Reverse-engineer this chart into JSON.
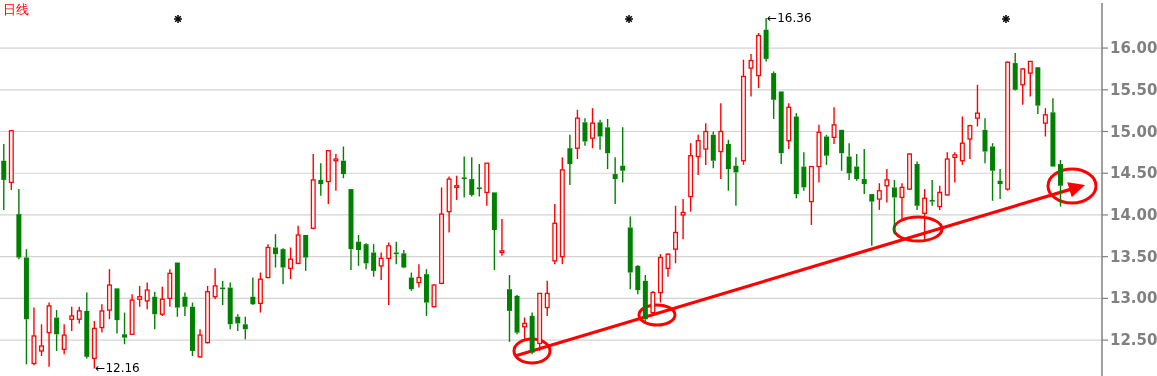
{
  "chart_data": {
    "type": "candlestick",
    "title": "日线",
    "categories": [
      null,
      null,
      null,
      null,
      null,
      null,
      null,
      null,
      null,
      null,
      null,
      null,
      null,
      null,
      null,
      null,
      null,
      null,
      null,
      null,
      null,
      null,
      null,
      null,
      null,
      null,
      null,
      null,
      null,
      null,
      null,
      null,
      null,
      null,
      null,
      null,
      null,
      null,
      null,
      null,
      null,
      null,
      null,
      null,
      null,
      null,
      null,
      null,
      null,
      null,
      null,
      null,
      null,
      null,
      null,
      null,
      null,
      null,
      null,
      null,
      null,
      null,
      null,
      null,
      null,
      null,
      null,
      null,
      null,
      null,
      null,
      null,
      null,
      null,
      null,
      null,
      null,
      null,
      null,
      null,
      null,
      null,
      null,
      null,
      null,
      null,
      null,
      null,
      null,
      null,
      null,
      null,
      null,
      null,
      null,
      null,
      null,
      null,
      null,
      null,
      null,
      null,
      null,
      null,
      null,
      null,
      null,
      null,
      null,
      null,
      null,
      null,
      null,
      null,
      null,
      null,
      null,
      null,
      null,
      null,
      null,
      null,
      null,
      null,
      null,
      null,
      null,
      null,
      null,
      null,
      null,
      null,
      null,
      null,
      null,
      null,
      null,
      null,
      null,
      null,
      null,
      null,
      null,
      null,
      null,
      null
    ],
    "ohlc": [
      [
        14.65,
        14.85,
        14.06,
        14.42
      ],
      [
        14.39,
        15.01,
        14.3,
        15.01
      ],
      [
        14.01,
        14.31,
        13.47,
        13.49
      ],
      [
        13.49,
        13.59,
        12.21,
        12.75
      ],
      [
        12.22,
        12.89,
        12.2,
        12.55
      ],
      [
        12.37,
        12.69,
        12.31,
        12.43
      ],
      [
        12.59,
        12.95,
        12.18,
        12.91
      ],
      [
        12.77,
        12.86,
        12.37,
        12.57
      ],
      [
        12.39,
        12.69,
        12.33,
        12.56
      ],
      [
        12.75,
        12.9,
        12.61,
        12.79
      ],
      [
        12.75,
        12.9,
        12.7,
        12.85
      ],
      [
        12.85,
        13.07,
        12.28,
        12.3
      ],
      [
        12.28,
        12.73,
        12.16,
        12.64
      ],
      [
        12.65,
        12.93,
        12.59,
        12.85
      ],
      [
        12.86,
        13.35,
        12.75,
        13.16
      ],
      [
        13.12,
        13.12,
        12.58,
        12.74
      ],
      [
        12.57,
        12.83,
        12.45,
        12.53
      ],
      [
        12.57,
        13.05,
        12.57,
        12.98
      ],
      [
        12.99,
        13.15,
        12.9,
        13.02
      ],
      [
        12.97,
        13.19,
        12.87,
        13.1
      ],
      [
        13.02,
        13.08,
        12.63,
        12.81
      ],
      [
        12.81,
        13.14,
        12.79,
        12.99
      ],
      [
        13.0,
        13.35,
        12.9,
        13.3
      ],
      [
        13.43,
        13.43,
        12.78,
        12.89
      ],
      [
        13.02,
        13.07,
        12.79,
        12.9
      ],
      [
        12.9,
        12.95,
        12.31,
        12.37
      ],
      [
        12.3,
        12.63,
        12.29,
        12.56
      ],
      [
        12.47,
        13.15,
        12.46,
        13.08
      ],
      [
        13.02,
        13.36,
        12.99,
        13.15
      ],
      [
        13.13,
        13.21,
        12.92,
        13.11
      ],
      [
        13.13,
        13.19,
        12.63,
        12.69
      ],
      [
        12.78,
        12.81,
        12.61,
        12.7
      ],
      [
        12.69,
        12.78,
        12.51,
        12.63
      ],
      [
        13.02,
        13.25,
        12.92,
        12.93
      ],
      [
        12.94,
        13.31,
        12.83,
        13.23
      ],
      [
        13.25,
        13.65,
        13.24,
        13.61
      ],
      [
        13.61,
        13.77,
        13.37,
        13.53
      ],
      [
        13.59,
        13.6,
        13.17,
        13.37
      ],
      [
        13.36,
        13.61,
        13.23,
        13.47
      ],
      [
        13.42,
        13.87,
        13.41,
        13.76
      ],
      [
        13.76,
        13.76,
        13.33,
        13.49
      ],
      [
        13.84,
        14.73,
        13.83,
        14.42
      ],
      [
        14.42,
        14.62,
        14.23,
        14.37
      ],
      [
        14.4,
        14.77,
        14.13,
        14.77
      ],
      [
        14.65,
        14.73,
        14.29,
        14.67
      ],
      [
        14.65,
        14.82,
        14.44,
        14.49
      ],
      [
        14.31,
        14.31,
        13.34,
        13.59
      ],
      [
        13.68,
        13.76,
        13.39,
        13.58
      ],
      [
        13.65,
        13.66,
        13.35,
        13.42
      ],
      [
        13.55,
        13.65,
        13.26,
        13.33
      ],
      [
        13.39,
        13.55,
        13.22,
        13.48
      ],
      [
        13.48,
        13.67,
        12.92,
        13.63
      ],
      [
        13.55,
        13.68,
        13.41,
        13.53
      ],
      [
        13.54,
        13.58,
        13.36,
        13.37
      ],
      [
        13.25,
        13.31,
        13.09,
        13.11
      ],
      [
        13.19,
        13.41,
        13.13,
        13.25
      ],
      [
        13.29,
        13.35,
        12.79,
        12.95
      ],
      [
        12.9,
        13.17,
        12.89,
        13.16
      ],
      [
        13.18,
        14.33,
        13.17,
        14.01
      ],
      [
        14.04,
        14.46,
        13.79,
        14.43
      ],
      [
        14.33,
        14.47,
        14.18,
        14.35
      ],
      [
        14.45,
        14.7,
        14.21,
        14.43
      ],
      [
        14.43,
        14.69,
        14.22,
        14.24
      ],
      [
        14.33,
        14.61,
        14.22,
        14.31
      ],
      [
        14.27,
        14.62,
        14.11,
        14.62
      ],
      [
        14.27,
        14.27,
        13.34,
        13.82
      ],
      [
        13.55,
        13.95,
        13.51,
        13.57
      ],
      [
        13.11,
        13.28,
        12.48,
        12.85
      ],
      [
        13.03,
        13.04,
        12.57,
        12.59
      ],
      [
        12.66,
        12.77,
        12.49,
        12.7
      ],
      [
        12.79,
        12.83,
        12.33,
        12.35
      ],
      [
        12.46,
        13.06,
        12.37,
        13.06
      ],
      [
        12.89,
        13.21,
        12.79,
        13.06
      ],
      [
        13.45,
        14.13,
        13.41,
        13.9
      ],
      [
        13.5,
        14.69,
        13.41,
        14.54
      ],
      [
        14.8,
        14.96,
        14.36,
        14.61
      ],
      [
        14.8,
        15.26,
        14.67,
        15.16
      ],
      [
        15.11,
        15.16,
        14.83,
        14.88
      ],
      [
        14.92,
        15.28,
        14.8,
        15.1
      ],
      [
        15.11,
        15.14,
        14.78,
        14.94
      ],
      [
        15.05,
        15.15,
        14.55,
        14.74
      ],
      [
        14.49,
        14.69,
        14.13,
        14.43
      ],
      [
        14.59,
        15.05,
        14.39,
        14.53
      ],
      [
        13.85,
        13.98,
        13.11,
        13.31
      ],
      [
        13.39,
        13.4,
        13.05,
        13.1
      ],
      [
        13.21,
        13.28,
        12.73,
        12.75
      ],
      [
        12.83,
        13.09,
        12.81,
        13.07
      ],
      [
        13.07,
        13.53,
        12.95,
        13.49
      ],
      [
        13.36,
        13.54,
        13.26,
        13.53
      ],
      [
        13.59,
        14.11,
        13.42,
        13.79
      ],
      [
        14.0,
        14.19,
        13.71,
        14.03
      ],
      [
        14.22,
        14.86,
        14.04,
        14.71
      ],
      [
        14.7,
        14.96,
        14.48,
        14.89
      ],
      [
        14.79,
        15.1,
        14.6,
        15.0
      ],
      [
        14.96,
        15.0,
        14.56,
        14.65
      ],
      [
        14.76,
        15.34,
        14.43,
        15.0
      ],
      [
        14.85,
        14.9,
        14.29,
        14.55
      ],
      [
        14.59,
        14.69,
        14.11,
        14.51
      ],
      [
        14.65,
        15.86,
        14.6,
        15.66
      ],
      [
        15.76,
        15.93,
        15.42,
        15.85
      ],
      [
        15.67,
        16.18,
        15.52,
        16.15
      ],
      [
        16.22,
        16.36,
        15.84,
        15.87
      ],
      [
        15.7,
        15.72,
        15.15,
        15.38
      ],
      [
        15.48,
        15.48,
        14.61,
        14.74
      ],
      [
        14.89,
        15.34,
        14.79,
        15.29
      ],
      [
        15.18,
        15.22,
        14.2,
        14.25
      ],
      [
        14.58,
        14.75,
        14.29,
        14.33
      ],
      [
        14.16,
        14.58,
        13.88,
        14.58
      ],
      [
        14.58,
        15.08,
        14.39,
        14.99
      ],
      [
        14.94,
        14.96,
        14.6,
        14.71
      ],
      [
        14.93,
        15.29,
        14.85,
        15.08
      ],
      [
        15.02,
        15.02,
        14.53,
        14.74
      ],
      [
        14.7,
        14.86,
        14.42,
        14.5
      ],
      [
        14.58,
        14.73,
        14.41,
        14.43
      ],
      [
        14.43,
        14.79,
        14.25,
        14.37
      ],
      [
        14.25,
        14.25,
        13.63,
        14.16
      ],
      [
        14.19,
        14.38,
        14.06,
        14.29
      ],
      [
        14.35,
        14.55,
        14.15,
        14.42
      ],
      [
        14.33,
        14.42,
        13.77,
        14.21
      ],
      [
        14.21,
        14.38,
        13.93,
        14.33
      ],
      [
        14.31,
        14.74,
        14.3,
        14.73
      ],
      [
        14.61,
        14.64,
        14.06,
        14.11
      ],
      [
        14.02,
        14.31,
        13.7,
        14.2
      ],
      [
        14.18,
        14.42,
        14.11,
        14.16
      ],
      [
        14.1,
        14.35,
        14.06,
        14.27
      ],
      [
        14.24,
        14.75,
        14.23,
        14.67
      ],
      [
        14.69,
        14.75,
        14.39,
        14.72
      ],
      [
        14.65,
        15.18,
        14.6,
        14.86
      ],
      [
        14.91,
        15.08,
        14.67,
        15.07
      ],
      [
        15.16,
        15.56,
        15.06,
        15.22
      ],
      [
        15.02,
        15.16,
        14.62,
        14.76
      ],
      [
        14.82,
        14.86,
        14.17,
        14.53
      ],
      [
        14.41,
        14.55,
        14.19,
        14.37
      ],
      [
        14.31,
        15.84,
        14.29,
        15.83
      ],
      [
        15.82,
        15.94,
        15.49,
        15.5
      ],
      [
        15.56,
        15.76,
        15.32,
        15.75
      ],
      [
        15.7,
        15.84,
        15.42,
        15.84
      ],
      [
        15.77,
        15.77,
        15.21,
        15.31
      ],
      [
        15.1,
        15.28,
        14.94,
        15.2
      ],
      [
        15.23,
        15.4,
        14.58,
        14.58
      ],
      [
        14.61,
        14.66,
        14.1,
        14.35
      ],
      null,
      null,
      null,
      null,
      null
    ],
    "colors": [
      "#008000",
      "#ff0000",
      "#008000",
      "#008000",
      "#ff0000",
      "#ff0000",
      "#ff0000",
      "#008000",
      "#ff0000",
      "#ff0000",
      "#ff0000",
      "#008000",
      "#ff0000",
      "#ff0000",
      "#ff0000",
      "#008000",
      "#008000",
      "#ff0000",
      "#ff0000",
      "#ff0000",
      "#008000",
      "#ff0000",
      "#ff0000",
      "#008000",
      "#008000",
      "#008000",
      "#ff0000",
      "#ff0000",
      "#ff0000",
      "#008000",
      "#008000",
      "#008000",
      "#008000",
      "#008000",
      "#ff0000",
      "#ff0000",
      "#008000",
      "#008000",
      "#ff0000",
      "#ff0000",
      "#008000",
      "#ff0000",
      "#008000",
      "#ff0000",
      "#ff0000",
      "#008000",
      "#008000",
      "#008000",
      "#008000",
      "#008000",
      "#ff0000",
      "#ff0000",
      "#008000",
      "#008000",
      "#008000",
      "#ff0000",
      "#008000",
      "#ff0000",
      "#ff0000",
      "#ff0000",
      "#ff0000",
      "#008000",
      "#008000",
      "#008000",
      "#ff0000",
      "#008000",
      "#ff0000",
      "#008000",
      "#008000",
      "#ff0000",
      "#008000",
      "#ff0000",
      "#ff0000",
      "#ff0000",
      "#ff0000",
      "#008000",
      "#ff0000",
      "#008000",
      "#ff0000",
      "#008000",
      "#008000",
      "#008000",
      "#008000",
      "#008000",
      "#008000",
      "#008000",
      "#ff0000",
      "#ff0000",
      "#ff0000",
      "#ff0000",
      "#ff0000",
      "#ff0000",
      "#ff0000",
      "#ff0000",
      "#008000",
      "#ff0000",
      "#008000",
      "#008000",
      "#ff0000",
      "#ff0000",
      "#ff0000",
      "#008000",
      "#008000",
      "#008000",
      "#ff0000",
      "#008000",
      "#008000",
      "#ff0000",
      "#ff0000",
      "#008000",
      "#ff0000",
      "#008000",
      "#008000",
      "#008000",
      "#008000",
      "#008000",
      "#ff0000",
      "#ff0000",
      "#008000",
      "#ff0000",
      "#ff0000",
      "#008000",
      "#ff0000",
      "#008000",
      "#ff0000",
      "#ff0000",
      "#ff0000",
      "#ff0000",
      "#ff0000",
      "#ff0000",
      "#008000",
      "#008000",
      "#008000",
      "#ff0000",
      "#008000",
      "#ff0000",
      "#ff0000",
      "#008000",
      "#ff0000",
      "#008000",
      "#008000",
      null,
      null,
      null,
      null,
      null
    ],
    "ylim": [
      12.07,
      16.54
    ],
    "yticks": [
      {
        "value": 12.5,
        "label": "12.50"
      },
      {
        "value": 13,
        "label": "13.00"
      },
      {
        "value": 13.5,
        "label": "13.50"
      },
      {
        "value": 14,
        "label": "14.00"
      },
      {
        "value": 14.5,
        "label": "14.50"
      },
      {
        "value": 15,
        "label": "15.00"
      },
      {
        "value": 15.5,
        "label": "15.50"
      },
      {
        "value": 16,
        "label": "16.00"
      }
    ],
    "grid": "y",
    "annotations": [
      "←12.16",
      "←16.36"
    ]
  }
}
